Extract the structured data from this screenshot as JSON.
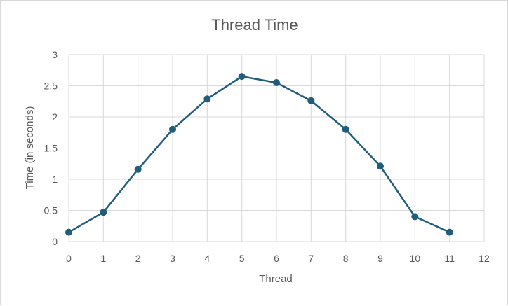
{
  "chart_data": {
    "type": "line",
    "title": "Thread Time",
    "xlabel": "Thread",
    "ylabel": "Time (in seconds)",
    "xlim": [
      0,
      12
    ],
    "ylim": [
      0,
      3
    ],
    "x_ticks": [
      "0",
      "1",
      "2",
      "3",
      "4",
      "5",
      "6",
      "7",
      "8",
      "9",
      "10",
      "11",
      "12"
    ],
    "y_ticks": [
      "0",
      "0.5",
      "1",
      "1.5",
      "2",
      "2.5",
      "3"
    ],
    "grid": true,
    "legend": "none",
    "series": [
      {
        "color": "#1f5d7a",
        "x": [
          0,
          1,
          2,
          3,
          4,
          5,
          6,
          7,
          8,
          9,
          10,
          11
        ],
        "y": [
          0.15,
          0.47,
          1.16,
          1.8,
          2.29,
          2.65,
          2.55,
          2.26,
          1.8,
          1.21,
          0.4,
          0.15
        ]
      }
    ]
  }
}
